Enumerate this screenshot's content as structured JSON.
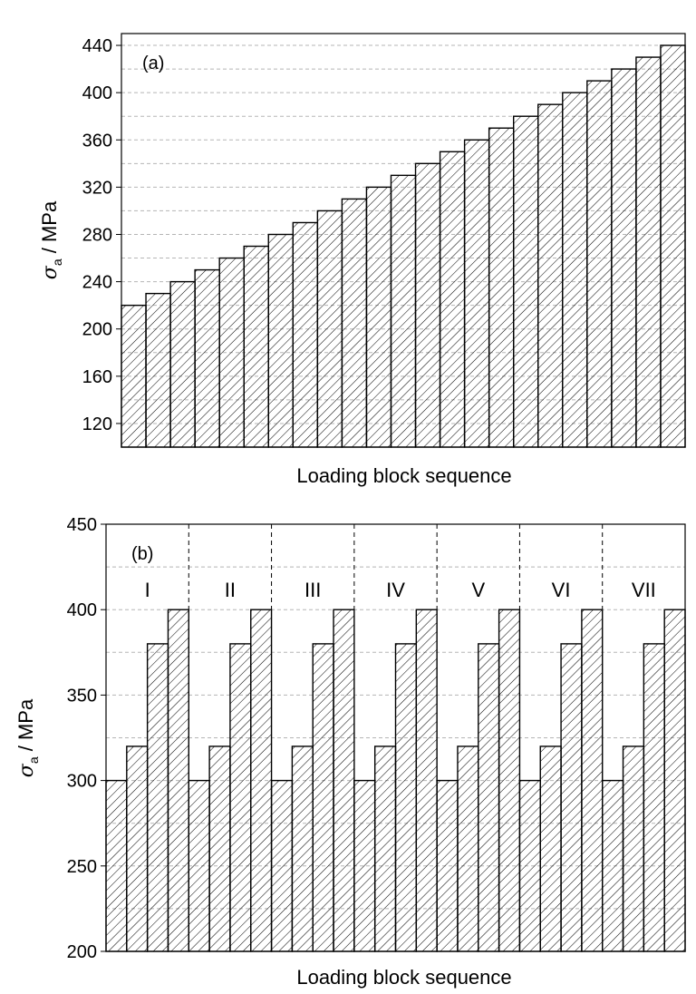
{
  "chart_data": [
    {
      "panel": "(a)",
      "type": "bar",
      "xlabel": "Loading block sequence",
      "ylabel": {
        "symbol": "σ",
        "subscript": "a",
        "unit": " / MPa"
      },
      "ylim": [
        100,
        450
      ],
      "yticks": [
        120,
        160,
        200,
        240,
        280,
        320,
        360,
        400,
        440
      ],
      "grid": true,
      "hatch": true,
      "values": [
        220,
        230,
        240,
        250,
        260,
        270,
        280,
        290,
        300,
        310,
        320,
        330,
        340,
        350,
        360,
        370,
        380,
        390,
        400,
        410,
        420,
        430,
        440
      ]
    },
    {
      "panel": "(b)",
      "type": "bar",
      "xlabel": "Loading block sequence",
      "ylabel": {
        "symbol": "σ",
        "subscript": "a",
        "unit": " / MPa"
      },
      "ylim": [
        200,
        450
      ],
      "yticks": [
        200,
        250,
        300,
        350,
        400,
        450
      ],
      "grid": true,
      "hatch": true,
      "groups": [
        "I",
        "II",
        "III",
        "IV",
        "V",
        "VI",
        "VII"
      ],
      "group_values": [
        300,
        320,
        380,
        400
      ]
    }
  ]
}
